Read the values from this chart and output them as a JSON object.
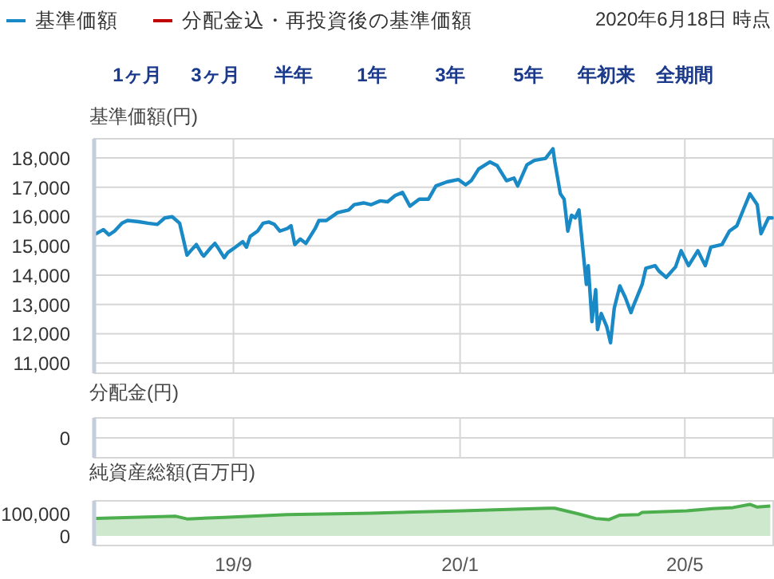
{
  "chart_data": [
    {
      "type": "line",
      "subtitle": "2020年6月18日 時点",
      "legend": "top left",
      "ylabel": "基準価額(円)",
      "grid": true,
      "tick_labels": "y",
      "annotations": [
        "1ヶ月",
        "3ヶ月",
        "半年",
        "1年",
        "3年",
        "5年",
        "年初来",
        "全期間"
      ],
      "xlim": [
        "2019-06-18",
        "2020-06-18"
      ],
      "xticks": [
        {
          "value": "2019-09-01",
          "label": null
        },
        {
          "value": "2020-01-01",
          "label": null
        },
        {
          "value": "2020-05-01",
          "label": null
        }
      ],
      "ylim": [
        10650,
        18650
      ],
      "yticks": [
        {
          "value": 11000,
          "label": "11,000"
        },
        {
          "value": 12000,
          "label": "12,000"
        },
        {
          "value": 13000,
          "label": "13,000"
        },
        {
          "value": 14000,
          "label": "14,000"
        },
        {
          "value": 15000,
          "label": "15,000"
        },
        {
          "value": 16000,
          "label": "16,000"
        },
        {
          "value": 17000,
          "label": "17,000"
        },
        {
          "value": 18000,
          "label": "18,000"
        }
      ],
      "series": [
        {
          "name": "基準価額",
          "color": "#1a8ac6",
          "x": [
            "2019-06-19",
            "2019-06-23",
            "2019-06-26",
            "2019-06-29",
            "2019-07-03",
            "2019-07-06",
            "2019-07-12",
            "2019-07-17",
            "2019-07-22",
            "2019-07-26",
            "2019-07-30",
            "2019-08-03",
            "2019-08-05",
            "2019-08-07",
            "2019-08-09",
            "2019-08-12",
            "2019-08-15",
            "2019-08-16",
            "2019-08-20",
            "2019-08-22",
            "2019-08-24",
            "2019-08-27",
            "2019-08-29",
            "2019-09-02",
            "2019-09-06",
            "2019-09-08",
            "2019-09-10",
            "2019-09-14",
            "2019-09-17",
            "2019-09-20",
            "2019-09-23",
            "2019-09-26",
            "2019-09-30",
            "2019-10-02",
            "2019-10-04",
            "2019-10-07",
            "2019-10-10",
            "2019-10-15",
            "2019-10-17",
            "2019-10-21",
            "2019-10-27",
            "2019-11-02",
            "2019-11-05",
            "2019-11-10",
            "2019-11-14",
            "2019-11-19",
            "2019-11-23",
            "2019-11-27",
            "2019-12-01",
            "2019-12-05",
            "2019-12-10",
            "2019-12-15",
            "2019-12-19",
            "2019-12-25",
            "2019-12-31",
            "2020-01-04",
            "2020-01-07",
            "2020-01-11",
            "2020-01-17",
            "2020-01-21",
            "2020-01-26",
            "2020-01-30",
            "2020-02-01",
            "2020-02-06",
            "2020-02-10",
            "2020-02-16",
            "2020-02-20",
            "2020-02-21",
            "2020-02-24",
            "2020-02-26",
            "2020-02-28",
            "2020-03-01",
            "2020-03-03",
            "2020-03-05",
            "2020-03-07",
            "2020-03-09",
            "2020-03-10",
            "2020-03-12",
            "2020-03-14",
            "2020-03-15",
            "2020-03-17",
            "2020-03-20",
            "2020-03-22",
            "2020-03-24",
            "2020-03-27",
            "2020-03-30",
            "2020-04-02",
            "2020-04-03",
            "2020-04-08",
            "2020-04-10",
            "2020-04-15",
            "2020-04-17",
            "2020-04-21",
            "2020-04-26",
            "2020-04-29",
            "2020-05-03",
            "2020-05-08",
            "2020-05-12",
            "2020-05-15",
            "2020-05-21",
            "2020-05-25",
            "2020-05-29",
            "2020-06-02",
            "2020-06-05",
            "2020-06-09",
            "2020-06-11",
            "2020-06-15",
            "2020-06-17"
          ],
          "values": [
            15410,
            15550,
            15370,
            15500,
            15770,
            15860,
            15820,
            15770,
            15730,
            15950,
            15990,
            15770,
            15230,
            14680,
            14830,
            15040,
            14720,
            14650,
            14950,
            15080,
            14900,
            14590,
            14770,
            14950,
            15140,
            14950,
            15320,
            15500,
            15770,
            15810,
            15730,
            15500,
            15590,
            15680,
            15040,
            15230,
            15080,
            15590,
            15860,
            15860,
            16130,
            16220,
            16400,
            16460,
            16400,
            16530,
            16500,
            16710,
            16820,
            16350,
            16590,
            16590,
            17040,
            17180,
            17260,
            17080,
            17220,
            17620,
            17860,
            17730,
            17220,
            17310,
            17040,
            17760,
            17910,
            17980,
            18310,
            17860,
            16770,
            16590,
            15500,
            16040,
            15950,
            16220,
            14950,
            13680,
            14320,
            12410,
            13500,
            12140,
            12690,
            12230,
            11690,
            12870,
            13630,
            13230,
            12720,
            12900,
            13680,
            14230,
            14320,
            14140,
            13920,
            14280,
            14830,
            14320,
            14830,
            14320,
            14950,
            15040,
            15500,
            15680,
            16310,
            16770,
            16400,
            15410,
            15950,
            15950
          ]
        },
        {
          "name": "分配金込・再投資後の基準価額",
          "color": "#c00000"
        }
      ]
    },
    {
      "type": "other",
      "ylabel": "分配金(円)",
      "annotations": [
        "0"
      ]
    },
    {
      "type": "area",
      "ylabel": "純資産総額(百万円)",
      "color": "#4cae4c",
      "xlim": [
        "2019-06-18",
        "2020-06-18"
      ],
      "xticks": [
        {
          "value": "2019-09-01",
          "label": "19/9"
        },
        {
          "value": "2020-01-01",
          "label": "20/1"
        },
        {
          "value": "2020-05-01",
          "label": "20/5"
        }
      ],
      "ylim": [
        -43000,
        157000
      ],
      "yticks": [
        0,
        {
          "value": 100000,
          "label": "100,000"
        }
      ],
      "x": [
        "2019-06-19",
        "2019-08-01",
        "2019-08-07",
        "2019-08-27",
        "2019-09-30",
        "2019-11-14",
        "2020-01-02",
        "2020-02-17",
        "2020-02-21",
        "2020-03-05",
        "2020-03-14",
        "2020-03-21",
        "2020-03-27",
        "2020-04-06",
        "2020-04-08",
        "2020-05-02",
        "2020-05-16",
        "2020-05-27",
        "2020-06-05",
        "2020-06-09",
        "2020-06-16"
      ],
      "values": [
        78000,
        88000,
        76000,
        83000,
        95000,
        102000,
        112000,
        124000,
        124000,
        98000,
        78000,
        73000,
        93000,
        95000,
        105000,
        112000,
        122000,
        127000,
        141000,
        129000,
        134000
      ]
    }
  ]
}
